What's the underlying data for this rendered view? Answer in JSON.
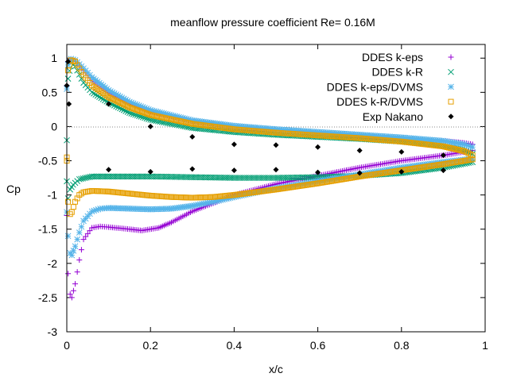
{
  "chart_data": {
    "type": "scatter",
    "title": "meanflow pressure coefficient  Re= 0.16M",
    "xlabel": "x/c",
    "ylabel": "Cp",
    "xlim": [
      0,
      1
    ],
    "ylim": [
      -3,
      1.2
    ],
    "x_ticks": [
      "0",
      "0.2",
      "0.4",
      "0.6",
      "0.8",
      "1"
    ],
    "y_ticks": [
      "-3",
      "-2.5",
      "-2",
      "-1.5",
      "-1",
      "-0.5",
      "0",
      "0.5",
      "1"
    ],
    "zero_reference_line": true,
    "grid": false,
    "legend_position": "top-right",
    "series": [
      {
        "name": "DDES k-eps",
        "marker": "plus",
        "color": "#9400d3",
        "upper_surface": [
          [
            0.0,
            0.6
          ],
          [
            0.003,
            0.95
          ],
          [
            0.01,
            0.98
          ],
          [
            0.02,
            0.95
          ],
          [
            0.04,
            0.82
          ],
          [
            0.06,
            0.68
          ],
          [
            0.1,
            0.5
          ],
          [
            0.15,
            0.34
          ],
          [
            0.2,
            0.22
          ],
          [
            0.3,
            0.08
          ],
          [
            0.4,
            0.0
          ],
          [
            0.5,
            -0.05
          ],
          [
            0.6,
            -0.09
          ],
          [
            0.7,
            -0.13
          ],
          [
            0.8,
            -0.17
          ],
          [
            0.9,
            -0.21
          ],
          [
            0.95,
            -0.24
          ],
          [
            0.97,
            -0.26
          ]
        ],
        "lower_surface": [
          [
            0.0,
            -1.3
          ],
          [
            0.003,
            -2.15
          ],
          [
            0.008,
            -2.45
          ],
          [
            0.012,
            -2.5
          ],
          [
            0.02,
            -2.3
          ],
          [
            0.03,
            -1.95
          ],
          [
            0.04,
            -1.65
          ],
          [
            0.06,
            -1.48
          ],
          [
            0.08,
            -1.46
          ],
          [
            0.1,
            -1.47
          ],
          [
            0.15,
            -1.5
          ],
          [
            0.18,
            -1.52
          ],
          [
            0.22,
            -1.48
          ],
          [
            0.25,
            -1.4
          ],
          [
            0.3,
            -1.24
          ],
          [
            0.35,
            -1.12
          ],
          [
            0.4,
            -1.0
          ],
          [
            0.5,
            -0.84
          ],
          [
            0.6,
            -0.72
          ],
          [
            0.7,
            -0.6
          ],
          [
            0.8,
            -0.5
          ],
          [
            0.9,
            -0.42
          ],
          [
            0.97,
            -0.35
          ]
        ]
      },
      {
        "name": "DDES k-R",
        "marker": "cross",
        "color": "#009e73",
        "upper_surface": [
          [
            0.0,
            -0.2
          ],
          [
            0.003,
            0.7
          ],
          [
            0.01,
            0.93
          ],
          [
            0.02,
            0.88
          ],
          [
            0.04,
            0.64
          ],
          [
            0.06,
            0.5
          ],
          [
            0.1,
            0.35
          ],
          [
            0.15,
            0.2
          ],
          [
            0.2,
            0.1
          ],
          [
            0.3,
            -0.02
          ],
          [
            0.4,
            -0.08
          ],
          [
            0.5,
            -0.12
          ],
          [
            0.6,
            -0.15
          ],
          [
            0.7,
            -0.18
          ],
          [
            0.8,
            -0.22
          ],
          [
            0.9,
            -0.28
          ],
          [
            0.95,
            -0.35
          ],
          [
            0.97,
            -0.4
          ]
        ],
        "lower_surface": [
          [
            0.0,
            -0.8
          ],
          [
            0.003,
            -1.05
          ],
          [
            0.008,
            -0.92
          ],
          [
            0.015,
            -0.85
          ],
          [
            0.03,
            -0.77
          ],
          [
            0.06,
            -0.73
          ],
          [
            0.1,
            -0.73
          ],
          [
            0.2,
            -0.73
          ],
          [
            0.3,
            -0.74
          ],
          [
            0.4,
            -0.75
          ],
          [
            0.5,
            -0.75
          ],
          [
            0.6,
            -0.74
          ],
          [
            0.7,
            -0.72
          ],
          [
            0.8,
            -0.68
          ],
          [
            0.9,
            -0.6
          ],
          [
            0.97,
            -0.52
          ]
        ]
      },
      {
        "name": "DDES k-eps/DVMS",
        "marker": "star",
        "color": "#56b4e9",
        "upper_surface": [
          [
            0.0,
            0.55
          ],
          [
            0.003,
            0.9
          ],
          [
            0.01,
            0.99
          ],
          [
            0.02,
            0.97
          ],
          [
            0.04,
            0.85
          ],
          [
            0.06,
            0.72
          ],
          [
            0.1,
            0.53
          ],
          [
            0.15,
            0.36
          ],
          [
            0.2,
            0.24
          ],
          [
            0.3,
            0.09
          ],
          [
            0.4,
            0.01
          ],
          [
            0.5,
            -0.04
          ],
          [
            0.6,
            -0.08
          ],
          [
            0.7,
            -0.12
          ],
          [
            0.8,
            -0.16
          ],
          [
            0.9,
            -0.21
          ],
          [
            0.95,
            -0.26
          ],
          [
            0.97,
            -0.3
          ]
        ],
        "lower_surface": [
          [
            0.0,
            -1.25
          ],
          [
            0.003,
            -1.6
          ],
          [
            0.008,
            -1.85
          ],
          [
            0.012,
            -1.88
          ],
          [
            0.02,
            -1.75
          ],
          [
            0.03,
            -1.55
          ],
          [
            0.04,
            -1.38
          ],
          [
            0.06,
            -1.24
          ],
          [
            0.08,
            -1.2
          ],
          [
            0.1,
            -1.19
          ],
          [
            0.15,
            -1.2
          ],
          [
            0.2,
            -1.21
          ],
          [
            0.25,
            -1.2
          ],
          [
            0.3,
            -1.16
          ],
          [
            0.35,
            -1.1
          ],
          [
            0.4,
            -1.03
          ],
          [
            0.5,
            -0.9
          ],
          [
            0.6,
            -0.8
          ],
          [
            0.7,
            -0.7
          ],
          [
            0.8,
            -0.6
          ],
          [
            0.9,
            -0.52
          ],
          [
            0.97,
            -0.47
          ]
        ]
      },
      {
        "name": "DDES k-R/DVMS",
        "marker": "open-square",
        "color": "#e69f00",
        "upper_surface": [
          [
            0.0,
            -0.45
          ],
          [
            0.003,
            0.82
          ],
          [
            0.01,
            0.97
          ],
          [
            0.02,
            0.95
          ],
          [
            0.04,
            0.75
          ],
          [
            0.06,
            0.6
          ],
          [
            0.1,
            0.43
          ],
          [
            0.15,
            0.28
          ],
          [
            0.2,
            0.17
          ],
          [
            0.3,
            0.04
          ],
          [
            0.4,
            -0.04
          ],
          [
            0.5,
            -0.09
          ],
          [
            0.6,
            -0.13
          ],
          [
            0.7,
            -0.17
          ],
          [
            0.8,
            -0.22
          ],
          [
            0.9,
            -0.29
          ],
          [
            0.95,
            -0.36
          ],
          [
            0.97,
            -0.42
          ]
        ],
        "lower_surface": [
          [
            0.0,
            -0.5
          ],
          [
            0.003,
            -1.1
          ],
          [
            0.008,
            -1.28
          ],
          [
            0.012,
            -1.25
          ],
          [
            0.02,
            -1.1
          ],
          [
            0.03,
            -1.0
          ],
          [
            0.04,
            -0.96
          ],
          [
            0.06,
            -0.94
          ],
          [
            0.1,
            -0.95
          ],
          [
            0.15,
            -0.98
          ],
          [
            0.2,
            -1.01
          ],
          [
            0.25,
            -1.03
          ],
          [
            0.3,
            -1.04
          ],
          [
            0.35,
            -1.03
          ],
          [
            0.4,
            -1.0
          ],
          [
            0.5,
            -0.92
          ],
          [
            0.6,
            -0.83
          ],
          [
            0.7,
            -0.73
          ],
          [
            0.8,
            -0.64
          ],
          [
            0.9,
            -0.55
          ],
          [
            0.97,
            -0.48
          ]
        ]
      },
      {
        "name": "Exp Nakano",
        "marker": "filled-diamond",
        "color": "#000000",
        "upper_surface": [
          [
            0.0,
            0.6
          ],
          [
            0.003,
            0.95
          ],
          [
            0.005,
            0.33
          ],
          [
            0.1,
            0.33
          ],
          [
            0.2,
            0.0
          ],
          [
            0.3,
            -0.15
          ],
          [
            0.4,
            -0.26
          ],
          [
            0.5,
            -0.27
          ],
          [
            0.6,
            -0.3
          ],
          [
            0.7,
            -0.35
          ],
          [
            0.8,
            -0.37
          ],
          [
            0.9,
            -0.42
          ]
        ],
        "lower_surface": [
          [
            0.1,
            -0.63
          ],
          [
            0.2,
            -0.66
          ],
          [
            0.3,
            -0.62
          ],
          [
            0.4,
            -0.64
          ],
          [
            0.5,
            -0.63
          ],
          [
            0.6,
            -0.67
          ],
          [
            0.7,
            -0.68
          ],
          [
            0.8,
            -0.66
          ],
          [
            0.9,
            -0.64
          ]
        ]
      }
    ]
  }
}
